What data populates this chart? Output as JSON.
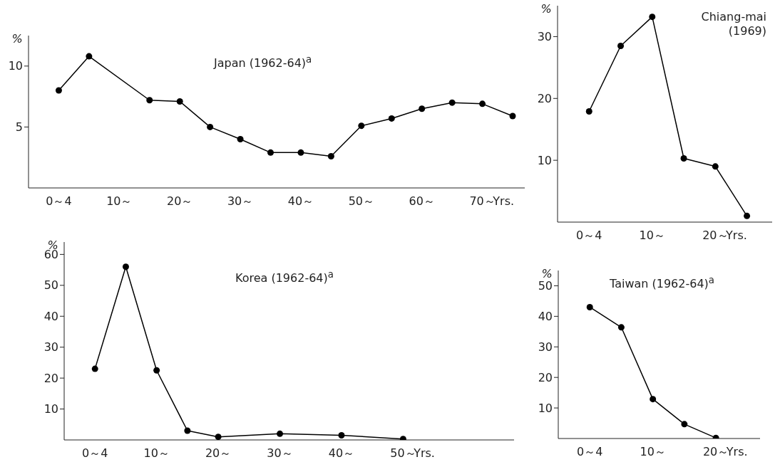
{
  "chart_data": [
    {
      "type": "line",
      "title": "Japan (1962-64)$^{a}$",
      "ylabel": "%",
      "xlabel": "Yrs.",
      "x": [
        0,
        5,
        15,
        20,
        25,
        30,
        35,
        40,
        45,
        50,
        55,
        60,
        65,
        70,
        75
      ],
      "series": [
        {
          "color": "#000000",
          "values": [
            8.0,
            10.8,
            7.2,
            7.1,
            5.0,
            4.0,
            2.9,
            2.9,
            2.6,
            5.1,
            5.7,
            6.5,
            7.0,
            6.9,
            5.9
          ]
        }
      ],
      "xlim": [
        -5,
        77
      ],
      "xticks": [
        {
          "value": 0,
          "label": "0～4"
        },
        {
          "value": 10,
          "label": "10～"
        },
        {
          "value": 20,
          "label": "20～"
        },
        {
          "value": 30,
          "label": "30～"
        },
        {
          "value": 40,
          "label": "40～"
        },
        {
          "value": 50,
          "label": "50～"
        },
        {
          "value": 60,
          "label": "60～"
        },
        {
          "value": 70,
          "label": "70～"
        }
      ],
      "ylim": [
        0,
        12.5
      ],
      "yticks": [
        5,
        10
      ],
      "marker": "circle",
      "line_style": "solid",
      "grid": false
    },
    {
      "type": "line",
      "title": "Chiang-mai (1969)",
      "ylabel": "%",
      "xlabel": "Yrs.",
      "x": [
        0,
        5,
        10,
        15,
        20,
        25
      ],
      "series": [
        {
          "color": "#000000",
          "values": [
            17.9,
            28.5,
            33.2,
            10.3,
            9.0,
            1.0
          ]
        }
      ],
      "xlim": [
        -5,
        29
      ],
      "xticks": [
        {
          "value": 0,
          "label": "0～4"
        },
        {
          "value": 10,
          "label": "10～"
        },
        {
          "value": 20,
          "label": "20～"
        }
      ],
      "ylim": [
        0,
        35
      ],
      "yticks": [
        10,
        20,
        30
      ],
      "marker": "circle",
      "line_style": "solid",
      "grid": false
    },
    {
      "type": "line",
      "title": "Korea (1962-64)$^{a}$",
      "ylabel": "%",
      "xlabel": "Yrs.",
      "x": [
        0,
        5,
        10,
        15,
        20,
        30,
        40,
        50
      ],
      "series": [
        {
          "color": "#000000",
          "values": [
            23,
            56,
            22.5,
            3,
            1,
            2,
            1.5,
            0.3
          ]
        }
      ],
      "xlim": [
        -5,
        68
      ],
      "xticks": [
        {
          "value": 0,
          "label": "0～4"
        },
        {
          "value": 10,
          "label": "10～"
        },
        {
          "value": 20,
          "label": "20～"
        },
        {
          "value": 30,
          "label": "30～"
        },
        {
          "value": 40,
          "label": "40～"
        },
        {
          "value": 50,
          "label": "50～"
        }
      ],
      "ylim": [
        0,
        64
      ],
      "yticks": [
        10,
        20,
        30,
        40,
        50,
        60
      ],
      "marker": "circle",
      "line_style": "solid",
      "grid": false
    },
    {
      "type": "line",
      "title": "Taiwan (1962-64)$^{a}$",
      "ylabel": "%",
      "xlabel": "Yrs.",
      "x": [
        0,
        5,
        10,
        15,
        20
      ],
      "series": [
        {
          "color": "#000000",
          "values": [
            43.0,
            36.4,
            12.9,
            4.7,
            0.2
          ]
        }
      ],
      "xlim": [
        -5,
        27
      ],
      "xticks": [
        {
          "value": 0,
          "label": "0～4"
        },
        {
          "value": 10,
          "label": "10～"
        },
        {
          "value": 20,
          "label": "20～"
        }
      ],
      "ylim": [
        0,
        55
      ],
      "yticks": [
        10,
        20,
        30,
        40,
        50
      ],
      "marker": "circle",
      "line_style": "solid",
      "grid": false
    }
  ]
}
